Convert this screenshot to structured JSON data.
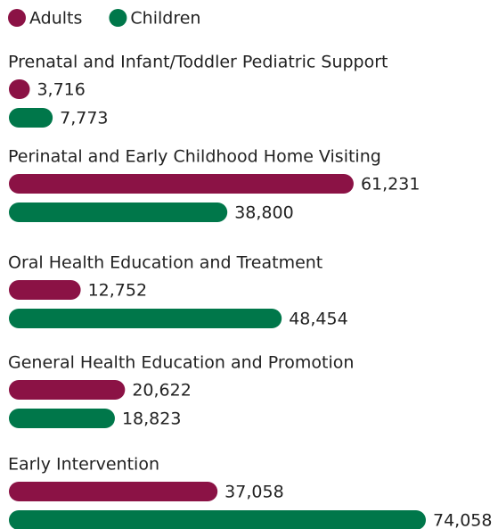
{
  "chart_data": {
    "type": "hbar",
    "categories": [
      "Prenatal and Infant/Toddler Pediatric Support",
      "Perinatal and Early Childhood Home Visiting",
      "Oral Health Education and Treatment",
      "General Health Education and Promotion",
      "Early Intervention"
    ],
    "series": [
      {
        "name": "Adults",
        "color": "#8b1245",
        "values": [
          3716,
          61231,
          12752,
          20622,
          37058
        ],
        "value_labels": [
          "3,716",
          "61,231",
          "12,752",
          "20,622",
          "37,058"
        ]
      },
      {
        "name": "Children",
        "color": "#00774a",
        "values": [
          7773,
          38800,
          48454,
          18823,
          74058
        ],
        "value_labels": [
          "7,773",
          "38,800",
          "48,454",
          "18,823",
          "74,058"
        ]
      }
    ]
  }
}
